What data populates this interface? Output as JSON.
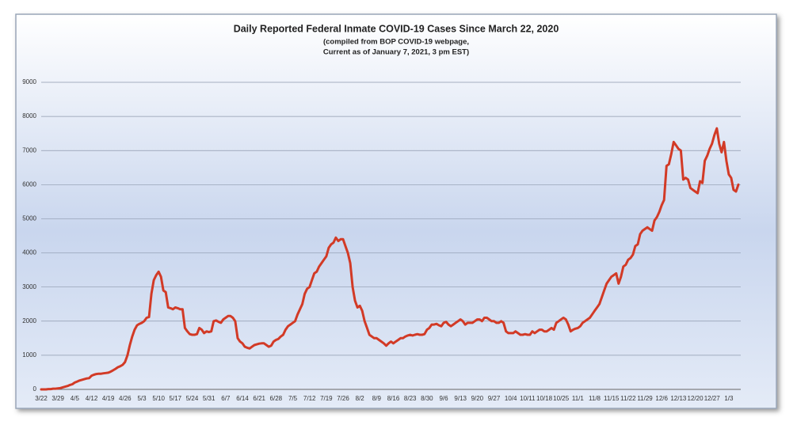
{
  "chart_data": {
    "type": "line",
    "title": "Daily Reported Federal Inmate COVID-19 Cases Since March 22, 2020",
    "subtitle": [
      "(compiled from BOP COVID-19 webpage,",
      "Current as of January 7, 2021, 3 pm EST)"
    ],
    "categories": [
      "3/22",
      null,
      null,
      null,
      null,
      null,
      null,
      "3/29",
      null,
      null,
      null,
      null,
      null,
      null,
      "4/5",
      null,
      null,
      null,
      null,
      null,
      null,
      "4/12",
      null,
      null,
      null,
      null,
      null,
      null,
      "4/19",
      null,
      null,
      null,
      null,
      null,
      null,
      "4/26",
      null,
      null,
      null,
      null,
      null,
      null,
      "5/3",
      null,
      null,
      null,
      null,
      null,
      null,
      "5/10",
      null,
      null,
      null,
      null,
      null,
      null,
      "5/17",
      null,
      null,
      null,
      null,
      null,
      null,
      "5/24",
      null,
      null,
      null,
      null,
      null,
      null,
      "5/31",
      null,
      null,
      null,
      null,
      null,
      null,
      "6/7",
      null,
      null,
      null,
      null,
      null,
      null,
      "6/14",
      null,
      null,
      null,
      null,
      null,
      null,
      "6/21",
      null,
      null,
      null,
      null,
      null,
      null,
      "6/28",
      null,
      null,
      null,
      null,
      null,
      null,
      "7/5",
      null,
      null,
      null,
      null,
      null,
      null,
      "7/12",
      null,
      null,
      null,
      null,
      null,
      null,
      "7/19",
      null,
      null,
      null,
      null,
      null,
      null,
      "7/26",
      null,
      null,
      null,
      null,
      null,
      null,
      "8/2",
      null,
      null,
      null,
      null,
      null,
      null,
      "8/9",
      null,
      null,
      null,
      null,
      null,
      null,
      "8/16",
      null,
      null,
      null,
      null,
      null,
      null,
      "8/23",
      null,
      null,
      null,
      null,
      null,
      null,
      "8/30",
      null,
      null,
      null,
      null,
      null,
      null,
      "9/6",
      null,
      null,
      null,
      null,
      null,
      null,
      "9/13",
      null,
      null,
      null,
      null,
      null,
      null,
      "9/20",
      null,
      null,
      null,
      null,
      null,
      null,
      "9/27",
      null,
      null,
      null,
      null,
      null,
      null,
      "10/4",
      null,
      null,
      null,
      null,
      null,
      null,
      "10/11",
      null,
      null,
      null,
      null,
      null,
      null,
      "10/18",
      null,
      null,
      null,
      null,
      null,
      null,
      "10/25",
      null,
      null,
      null,
      null,
      null,
      null,
      "11/1",
      null,
      null,
      null,
      null,
      null,
      null,
      "11/8",
      null,
      null,
      null,
      null,
      null,
      null,
      "11/15",
      null,
      null,
      null,
      null,
      null,
      null,
      "11/22",
      null,
      null,
      null,
      null,
      null,
      null,
      "11/29",
      null,
      null,
      null,
      null,
      null,
      null,
      "12/6",
      null,
      null,
      null,
      null,
      null,
      null,
      "12/13",
      null,
      null,
      null,
      null,
      null,
      null,
      "12/20",
      null,
      null,
      null,
      null,
      null,
      null,
      "12/27",
      null,
      null,
      null,
      null,
      null,
      null,
      "1/3",
      null,
      null,
      null,
      null
    ],
    "series": [
      {
        "color": "#d23a26",
        "values": [
          0,
          0,
          0,
          10,
          10,
          20,
          20,
          30,
          40,
          60,
          80,
          100,
          130,
          150,
          200,
          230,
          260,
          280,
          300,
          320,
          330,
          400,
          430,
          450,
          460,
          460,
          470,
          480,
          490,
          520,
          560,
          600,
          650,
          680,
          720,
          800,
          1000,
          1300,
          1550,
          1750,
          1880,
          1920,
          1950,
          2000,
          2100,
          2120,
          2800,
          3200,
          3350,
          3450,
          3300,
          2900,
          2850,
          2400,
          2380,
          2350,
          2400,
          2380,
          2350,
          2350,
          1800,
          1700,
          1620,
          1600,
          1600,
          1620,
          1800,
          1750,
          1650,
          1700,
          1680,
          1700,
          2000,
          2020,
          1980,
          1950,
          2050,
          2100,
          2150,
          2150,
          2100,
          2000,
          1500,
          1400,
          1350,
          1250,
          1220,
          1200,
          1250,
          1300,
          1320,
          1340,
          1350,
          1350,
          1300,
          1250,
          1280,
          1400,
          1450,
          1480,
          1550,
          1600,
          1750,
          1850,
          1900,
          1950,
          2000,
          2200,
          2350,
          2500,
          2800,
          2950,
          3000,
          3200,
          3400,
          3450,
          3600,
          3700,
          3800,
          3900,
          4150,
          4250,
          4300,
          4450,
          4350,
          4400,
          4400,
          4200,
          4000,
          3700,
          3000,
          2600,
          2400,
          2450,
          2300,
          2000,
          1800,
          1600,
          1550,
          1500,
          1500,
          1450,
          1400,
          1350,
          1280,
          1350,
          1400,
          1350,
          1400,
          1450,
          1500,
          1500,
          1550,
          1580,
          1600,
          1580,
          1600,
          1620,
          1600,
          1600,
          1620,
          1750,
          1800,
          1900,
          1900,
          1920,
          1880,
          1850,
          1950,
          1980,
          1900,
          1850,
          1900,
          1950,
          2000,
          2050,
          2000,
          1900,
          1950,
          1950,
          1950,
          2000,
          2050,
          2050,
          2000,
          2100,
          2100,
          2050,
          2000,
          2000,
          1950,
          1950,
          2000,
          1950,
          1700,
          1650,
          1650,
          1650,
          1700,
          1650,
          1600,
          1600,
          1620,
          1600,
          1600,
          1700,
          1650,
          1700,
          1750,
          1750,
          1700,
          1700,
          1750,
          1800,
          1750,
          1950,
          2000,
          2050,
          2100,
          2050,
          1900,
          1700,
          1750,
          1780,
          1800,
          1850,
          1950,
          2000,
          2050,
          2100,
          2200,
          2300,
          2400,
          2500,
          2700,
          2900,
          3100,
          3200,
          3300,
          3350,
          3400,
          3100,
          3300,
          3600,
          3650,
          3800,
          3850,
          3950,
          4200,
          4250,
          4550,
          4650,
          4700,
          4750,
          4700,
          4650,
          4950,
          5050,
          5200,
          5400,
          5550,
          6550,
          6600,
          6900,
          7250,
          7150,
          7050,
          7000,
          6150,
          6200,
          6150,
          5900,
          5850,
          5800,
          5750,
          6100,
          6050,
          6700,
          6850,
          7050,
          7200,
          7450,
          7650,
          7200,
          6950,
          7250,
          6700,
          6300,
          6200,
          5850,
          5800,
          6000
        ]
      }
    ],
    "ylim": [
      0,
      9000
    ],
    "yticks": [
      0,
      1000,
      2000,
      3000,
      4000,
      5000,
      6000,
      7000,
      8000,
      9000
    ],
    "grid": true
  }
}
